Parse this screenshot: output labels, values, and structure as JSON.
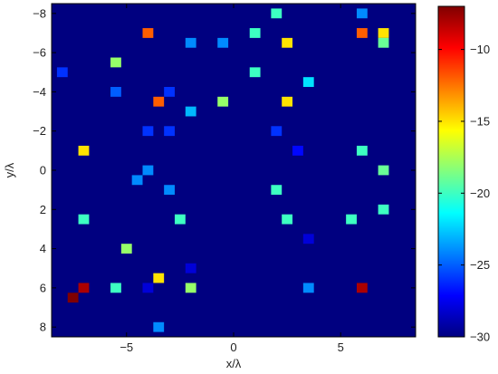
{
  "chart_data": {
    "type": "heatmap",
    "xlabel": "x/λ",
    "ylabel": "y/λ",
    "xlim": [
      -8.5,
      8.5
    ],
    "ylim": [
      -8.5,
      8.5
    ],
    "y_direction": "reversed",
    "x_ticks": [
      {
        "value": -5,
        "label": "−5"
      },
      {
        "value": 0,
        "label": "0"
      },
      {
        "value": 5,
        "label": "5"
      }
    ],
    "y_ticks": [
      {
        "value": -8,
        "label": "−8"
      },
      {
        "value": -6,
        "label": "−6"
      },
      {
        "value": -4,
        "label": "−4"
      },
      {
        "value": -2,
        "label": "−2"
      },
      {
        "value": 0,
        "label": "0"
      },
      {
        "value": 2,
        "label": "2"
      },
      {
        "value": 4,
        "label": "4"
      },
      {
        "value": 6,
        "label": "6"
      },
      {
        "value": 8,
        "label": "8"
      }
    ],
    "cell_size": 0.5,
    "background_value": -30,
    "colormap": "jet",
    "color_range": [
      -30,
      -7
    ],
    "colorbar_ticks": [
      {
        "value": -10,
        "label": "−10"
      },
      {
        "value": -15,
        "label": "−15"
      },
      {
        "value": -20,
        "label": "−20"
      },
      {
        "value": -25,
        "label": "−25"
      },
      {
        "value": -30,
        "label": "−30"
      }
    ],
    "points": [
      {
        "x": 2,
        "y": -8,
        "value": -20
      },
      {
        "x": 6,
        "y": -8,
        "value": -24
      },
      {
        "x": -4,
        "y": -7,
        "value": -12
      },
      {
        "x": 1,
        "y": -7,
        "value": -20
      },
      {
        "x": 6,
        "y": -7,
        "value": -12
      },
      {
        "x": 7,
        "y": -7,
        "value": -15
      },
      {
        "x": -2,
        "y": -6.5,
        "value": -24
      },
      {
        "x": -0.5,
        "y": -6.5,
        "value": -24
      },
      {
        "x": 2.5,
        "y": -6.5,
        "value": -15
      },
      {
        "x": 7,
        "y": -6.5,
        "value": -19
      },
      {
        "x": -5.5,
        "y": -5.5,
        "value": -18
      },
      {
        "x": -8,
        "y": -5,
        "value": -26
      },
      {
        "x": 1,
        "y": -5,
        "value": -20
      },
      {
        "x": 3.5,
        "y": -4.5,
        "value": -22
      },
      {
        "x": -5.5,
        "y": -4,
        "value": -25
      },
      {
        "x": -3,
        "y": -4,
        "value": -26
      },
      {
        "x": -3.5,
        "y": -3.5,
        "value": -12
      },
      {
        "x": -0.5,
        "y": -3.5,
        "value": -18
      },
      {
        "x": 2.5,
        "y": -3.5,
        "value": -15
      },
      {
        "x": -2,
        "y": -3,
        "value": -23
      },
      {
        "x": -4,
        "y": -2,
        "value": -26
      },
      {
        "x": -3,
        "y": -2,
        "value": -26
      },
      {
        "x": 2,
        "y": -2,
        "value": -26
      },
      {
        "x": -7,
        "y": -1,
        "value": -15
      },
      {
        "x": 3,
        "y": -1,
        "value": -27
      },
      {
        "x": 6,
        "y": -1,
        "value": -20
      },
      {
        "x": -4,
        "y": 0,
        "value": -24
      },
      {
        "x": 7,
        "y": 0,
        "value": -19
      },
      {
        "x": -4.5,
        "y": 0.5,
        "value": -24
      },
      {
        "x": -3,
        "y": 1,
        "value": -24
      },
      {
        "x": 2,
        "y": 1,
        "value": -20
      },
      {
        "x": 7,
        "y": 2,
        "value": -20
      },
      {
        "x": -7,
        "y": 2.5,
        "value": -20
      },
      {
        "x": -2.5,
        "y": 2.5,
        "value": -20
      },
      {
        "x": 2.5,
        "y": 2.5,
        "value": -20
      },
      {
        "x": 5.5,
        "y": 2.5,
        "value": -20
      },
      {
        "x": 3.5,
        "y": 3.5,
        "value": -28
      },
      {
        "x": -5,
        "y": 4,
        "value": -18
      },
      {
        "x": -2,
        "y": 5,
        "value": -28
      },
      {
        "x": -3.5,
        "y": 5.5,
        "value": -15
      },
      {
        "x": -7,
        "y": 6,
        "value": -8
      },
      {
        "x": -5.5,
        "y": 6,
        "value": -20
      },
      {
        "x": -4,
        "y": 6,
        "value": -28
      },
      {
        "x": -2,
        "y": 6,
        "value": -18
      },
      {
        "x": 3.5,
        "y": 6,
        "value": -24
      },
      {
        "x": 6,
        "y": 6,
        "value": -8
      },
      {
        "x": -7.5,
        "y": 6.5,
        "value": -7
      },
      {
        "x": -3.5,
        "y": 8,
        "value": -24
      }
    ]
  }
}
